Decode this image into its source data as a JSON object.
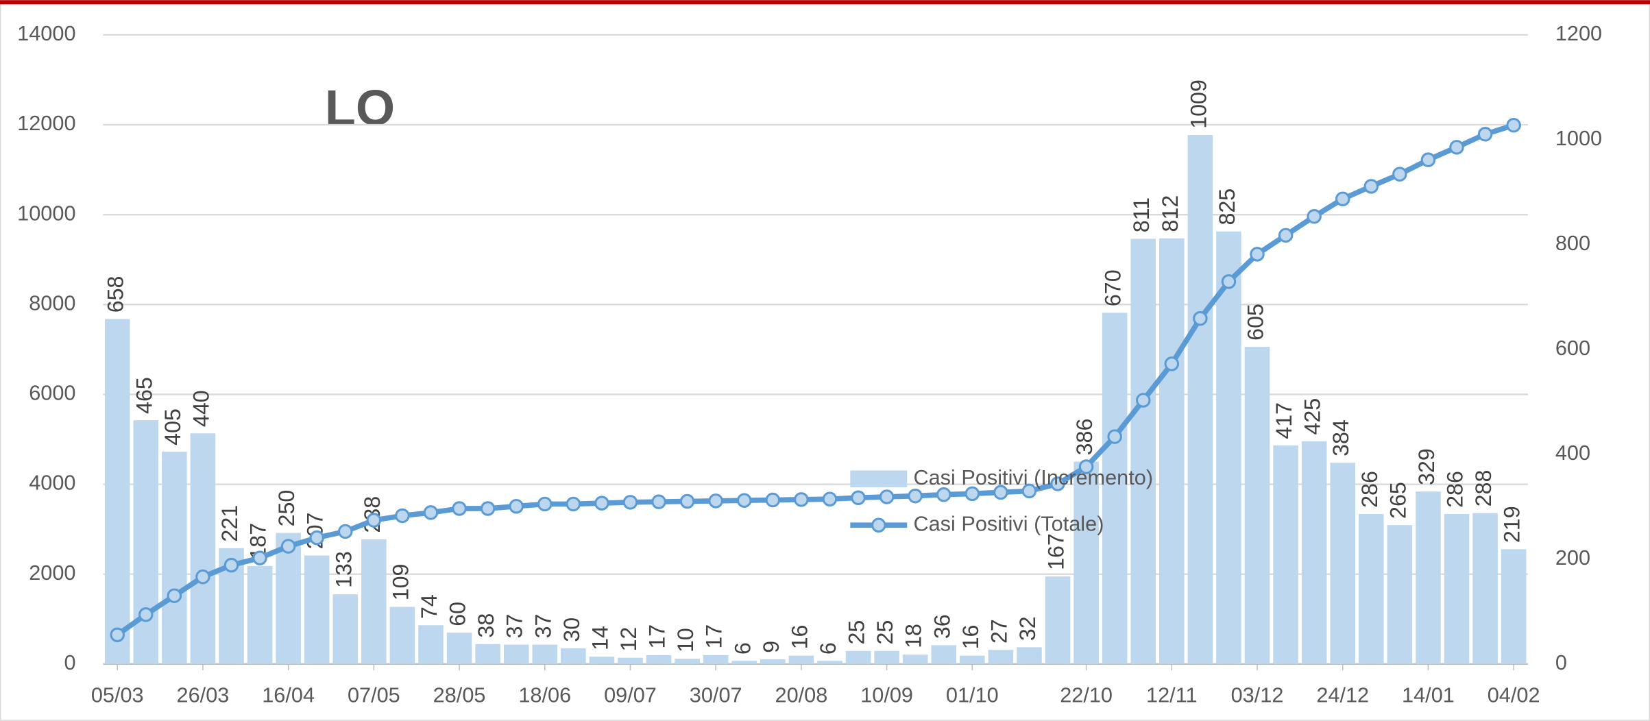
{
  "chart_data": {
    "type": "combo",
    "title": "LO",
    "categories": [
      "05/03",
      null,
      null,
      "26/03",
      null,
      null,
      "16/04",
      null,
      null,
      "07/05",
      null,
      null,
      "28/05",
      null,
      null,
      "18/06",
      null,
      null,
      "09/07",
      null,
      null,
      "30/07",
      null,
      null,
      "20/08",
      null,
      null,
      "10/09",
      null,
      null,
      "01/10",
      null,
      null,
      null,
      "22/10",
      null,
      null,
      "12/11",
      null,
      null,
      "03/12",
      null,
      null,
      "24/12",
      null,
      null,
      "14/01",
      null,
      null,
      "04/02"
    ],
    "series": [
      {
        "name": "Casi Positivi (Incremento)",
        "type": "bar",
        "axis": "y2",
        "color": "#bdd7ee",
        "values": [
          658,
          465,
          405,
          440,
          221,
          187,
          250,
          207,
          133,
          238,
          109,
          74,
          60,
          38,
          37,
          37,
          30,
          14,
          12,
          17,
          10,
          17,
          6,
          9,
          16,
          6,
          25,
          25,
          18,
          36,
          16,
          27,
          32,
          167,
          386,
          670,
          811,
          812,
          1009,
          825,
          605,
          417,
          425,
          384,
          286,
          265,
          329,
          286,
          288,
          219
        ]
      },
      {
        "name": "Casi Positivi (Totale)",
        "type": "line",
        "color": "#5b9bd5",
        "values": [
          650,
          1100,
          1520,
          1940,
          2200,
          2360,
          2620,
          2810,
          2950,
          3200,
          3300,
          3370,
          3460,
          3460,
          3510,
          3560,
          3560,
          3580,
          3600,
          3610,
          3620,
          3630,
          3640,
          3650,
          3660,
          3670,
          3700,
          3720,
          3740,
          3770,
          3790,
          3820,
          3850,
          4010,
          4390,
          5060,
          5870,
          6680,
          7690,
          8510,
          9120,
          9540,
          9960,
          10350,
          10630,
          10900,
          11220,
          11500,
          11790,
          11990
        ]
      }
    ],
    "ylim": [
      0,
      14000
    ],
    "yticks": [
      0,
      2000,
      4000,
      6000,
      8000,
      10000,
      12000,
      14000
    ],
    "y2lim": [
      0,
      1200
    ],
    "y2ticks": [
      0,
      200,
      400,
      600,
      800,
      1000,
      1200
    ],
    "grid": true,
    "legend": "center"
  }
}
